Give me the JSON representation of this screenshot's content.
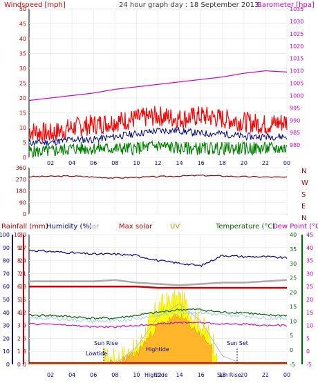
{
  "header": {
    "left_label": "Windspeed [mph]",
    "title": "24 hour graph day : 18 September 2013",
    "right_label": "Barometer [hpa]"
  },
  "colors": {
    "windspeed": "#ff0000",
    "wind_avg": "#00008b",
    "wind_min": "#008000",
    "barometer": "#cc00cc",
    "direction": "#990000",
    "humidity": "#00008b",
    "max_solar": "#cc0000",
    "uv": "#cc8800",
    "temperature": "#006600",
    "dew_point": "#cc00cc",
    "solar": "#ffff00"
  },
  "x_axis": {
    "ticks": [
      "02",
      "04",
      "06",
      "08",
      "10",
      "12",
      "14",
      "16",
      "18",
      "20",
      "22",
      "00"
    ]
  },
  "direction_panel": {
    "ylim": [
      0,
      360
    ],
    "ticks": [
      "360",
      "270",
      "180",
      "90",
      "0"
    ],
    "compass": [
      "N",
      "W",
      "S",
      "E",
      "N"
    ]
  },
  "bottom_header": {
    "rainfall": "Rainfall (mm)",
    "humidity": "Humidity (%)",
    "solar": "olar",
    "max_solar": "Max solar",
    "uv": "UV",
    "temperature": "Temperature (°C)",
    "dew_point": "Dew Point (°C)"
  },
  "annotations": {
    "sun_rise": "Sun Rise",
    "sun_set": "Sun Set",
    "lowtide": "Lowtide",
    "hightide_1": "Hightide",
    "hightide_2": "Hightide",
    "sun_rise_bottom": "Sun Rise"
  },
  "chart_data": [
    {
      "type": "line",
      "ylim": [
        0,
        50
      ],
      "y_ticks": [
        "50",
        "45",
        "40",
        "35",
        "30",
        "25",
        "20",
        "15",
        "10",
        "5",
        "0"
      ],
      "y2lim": [
        975,
        1035
      ],
      "y2_ticks": [
        "1035",
        "1030",
        "1025",
        "1020",
        "1015",
        "1010",
        "1005",
        "1000",
        "995",
        "990",
        "985",
        "980"
      ],
      "x_hours": [
        0,
        2,
        4,
        6,
        8,
        10,
        12,
        14,
        16,
        18,
        20,
        22,
        24
      ],
      "series": [
        {
          "name": "Windspeed",
          "values": [
            9,
            8,
            10,
            11,
            12,
            13,
            14,
            13,
            14,
            13,
            12,
            11,
            12
          ]
        },
        {
          "name": "Wind avg",
          "values": [
            5,
            5,
            6,
            6,
            7,
            8,
            9,
            9,
            8,
            8,
            7,
            7,
            7
          ]
        },
        {
          "name": "Wind min",
          "values": [
            2,
            2,
            3,
            3,
            3,
            3,
            4,
            3,
            3,
            3,
            3,
            3,
            3
          ]
        },
        {
          "name": "Barometer",
          "values": [
            998,
            999,
            1000,
            1001,
            1002.5,
            1003.5,
            1004.5,
            1005.5,
            1006.5,
            1007.5,
            1009,
            1010,
            1009.5
          ]
        }
      ]
    },
    {
      "type": "line",
      "ylim": [
        0,
        360
      ],
      "x_hours": [
        0,
        4,
        8,
        12,
        16,
        20,
        24
      ],
      "series": [
        {
          "name": "Wind direction",
          "values": [
            290,
            295,
            280,
            290,
            300,
            290,
            285
          ]
        }
      ]
    },
    {
      "type": "area",
      "left_axis_rain": {
        "ylim": [
          0,
          10
        ],
        "ticks": [
          "10",
          "9",
          "8",
          "7",
          "6",
          "5",
          "4",
          "3",
          "2",
          "1",
          "0"
        ]
      },
      "left_axis_humidity": {
        "ylim": [
          0,
          100
        ],
        "ticks": [
          "100",
          "90",
          "80",
          "70",
          "60",
          "50",
          "40",
          "30",
          "20",
          "10",
          "0"
        ]
      },
      "left_axis_solar": {
        "ylim": [
          0,
          30
        ],
        "ticks": [
          "30",
          "27",
          "24",
          "21",
          "18",
          "15",
          "12",
          "9",
          "6",
          "3",
          "0"
        ]
      },
      "right_axis_temp": {
        "ylim": [
          -5,
          40
        ],
        "ticks": [
          "40",
          "35",
          "30",
          "25",
          "20",
          "15",
          "10",
          "5",
          "0",
          "-5"
        ]
      },
      "right_axis_dew": {
        "ylim": [
          -5,
          45
        ],
        "ticks": [
          "45",
          "40",
          "35",
          "30",
          "25",
          "20",
          "15",
          "10",
          "5",
          "0",
          "-5"
        ]
      },
      "x_hours": [
        0,
        2,
        4,
        6,
        8,
        10,
        12,
        14,
        16,
        18,
        20,
        22,
        24
      ],
      "series": [
        {
          "name": "Humidity",
          "values": [
            88,
            87,
            86,
            85,
            85,
            84,
            80,
            78,
            76,
            84,
            83,
            83,
            82
          ]
        },
        {
          "name": "Grey line",
          "values": [
            64,
            64,
            64,
            64,
            65,
            63,
            62,
            61,
            62,
            63,
            63,
            64,
            65
          ]
        },
        {
          "name": "Red line",
          "values": [
            60,
            60,
            60,
            60,
            60,
            60,
            59,
            59,
            59,
            59,
            59,
            59,
            59
          ]
        },
        {
          "name": "Temperature",
          "values": [
            12,
            12,
            11.5,
            11,
            11,
            12,
            13,
            14,
            14,
            13,
            13,
            12,
            12
          ]
        },
        {
          "name": "Dew Point",
          "values": [
            9,
            9,
            8.5,
            8,
            8,
            8.5,
            9,
            9.5,
            9.5,
            9,
            9,
            8.5,
            8.5
          ]
        },
        {
          "name": "Max solar",
          "values": [
            0,
            0,
            0,
            0,
            0,
            4,
            11,
            14,
            10,
            2,
            0,
            0,
            0
          ]
        },
        {
          "name": "Solar",
          "values": [
            0,
            0,
            0,
            0,
            0,
            2,
            12,
            14,
            8,
            1,
            0,
            0,
            0
          ]
        },
        {
          "name": "UV",
          "values": [
            0,
            0,
            0,
            0,
            0,
            1,
            4,
            5,
            3,
            0.5,
            0,
            0,
            0
          ]
        },
        {
          "name": "Rainfall",
          "values": [
            0,
            0,
            0,
            0,
            0,
            0,
            0,
            0,
            0,
            0,
            0,
            0,
            0
          ]
        }
      ]
    }
  ]
}
